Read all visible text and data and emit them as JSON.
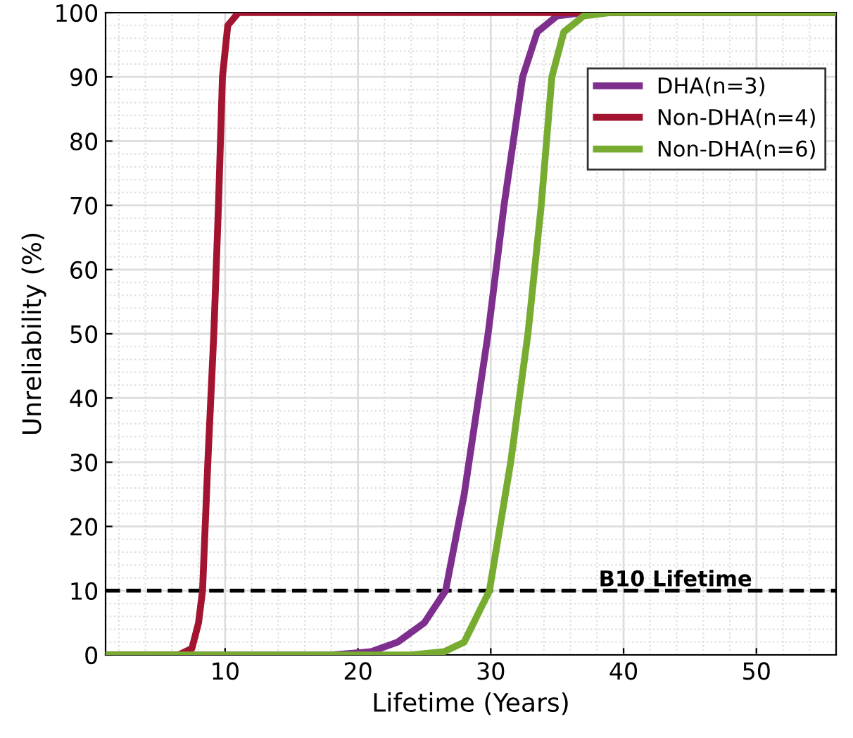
{
  "chart_data": {
    "type": "line",
    "xlabel": "Lifetime (Years)",
    "ylabel": "Unreliability (%)",
    "xlim": [
      1,
      56
    ],
    "ylim": [
      0,
      100
    ],
    "xticks": [
      10,
      20,
      30,
      40,
      50
    ],
    "yticks": [
      0,
      10,
      20,
      30,
      40,
      50,
      60,
      70,
      80,
      90,
      100
    ],
    "grid": true,
    "legend": "top right",
    "line_style": "solid",
    "marker": "none",
    "series": [
      {
        "name": "DHA(n=3)",
        "color": "#7e2f8e",
        "x": [
          1,
          18,
          21,
          23,
          25,
          26.6,
          28,
          29.8,
          31,
          32.4,
          33.5,
          35,
          37,
          56
        ],
        "values": [
          0,
          0,
          0.5,
          2,
          5,
          10,
          25,
          50,
          70,
          90,
          97,
          99.5,
          100,
          100
        ]
      },
      {
        "name": "Non-DHA(n=4)",
        "color": "#a2142f",
        "x": [
          1,
          6.5,
          7.5,
          8,
          8.3,
          8.7,
          9.15,
          9.5,
          9.8,
          10.2,
          11,
          56
        ],
        "values": [
          0,
          0,
          1,
          5,
          10,
          30,
          50,
          70,
          90,
          98,
          100,
          100
        ]
      },
      {
        "name": "Non-DHA(n=6)",
        "color": "#77ac30",
        "x": [
          1,
          24,
          26.5,
          28,
          29.9,
          31.5,
          32.8,
          33.8,
          34.6,
          35.5,
          37,
          39,
          56
        ],
        "values": [
          0,
          0,
          0.5,
          2,
          10,
          30,
          50,
          70,
          90,
          97,
          99.5,
          100,
          100
        ]
      }
    ],
    "ref_lines": [
      {
        "axis": "y",
        "value": 10,
        "label": "B10 Lifetime",
        "color": "#000000",
        "line_style": "dashed"
      }
    ]
  }
}
